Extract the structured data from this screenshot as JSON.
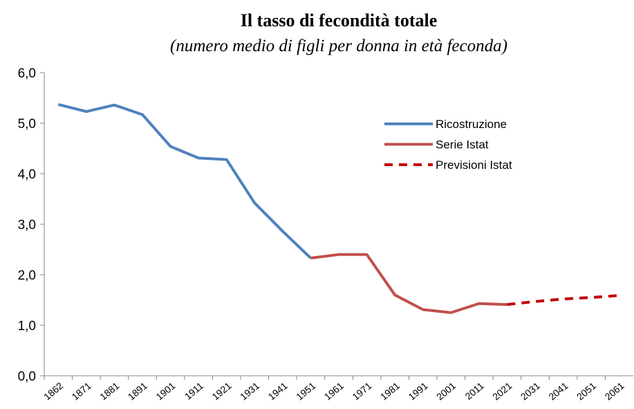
{
  "chart_data": {
    "type": "line",
    "title": "Il tasso di fecondità totale",
    "subtitle": "(numero medio di figli per donna in età feconda)",
    "categories": [
      "1862",
      "1871",
      "1881",
      "1891",
      "1901",
      "1911",
      "1921",
      "1931",
      "1941",
      "1951",
      "1961",
      "1971",
      "1981",
      "1991",
      "2001",
      "2011",
      "2021",
      "2031",
      "2041",
      "2051",
      "2061"
    ],
    "series": [
      {
        "name": "Ricostruzione",
        "color": "#4f81bd",
        "dashed": false,
        "values": [
          5.37,
          5.23,
          5.36,
          5.17,
          4.54,
          4.31,
          4.28,
          3.42,
          2.86,
          2.33,
          null,
          null,
          null,
          null,
          null,
          null,
          null,
          null,
          null,
          null,
          null
        ]
      },
      {
        "name": "Serie Istat",
        "color": "#c0504d",
        "dashed": false,
        "values": [
          null,
          null,
          null,
          null,
          null,
          null,
          null,
          null,
          null,
          2.33,
          2.4,
          2.4,
          1.6,
          1.31,
          1.25,
          1.43,
          1.41,
          null,
          null,
          null,
          null
        ]
      },
      {
        "name": "Previsioni Istat",
        "color": "#c00000",
        "dashed": true,
        "values": [
          null,
          null,
          null,
          null,
          null,
          null,
          null,
          null,
          null,
          null,
          null,
          null,
          null,
          null,
          null,
          null,
          1.41,
          1.47,
          1.52,
          1.55,
          1.59
        ]
      }
    ],
    "ylim": [
      0,
      6
    ],
    "yticks": [
      {
        "value": 0,
        "label": "0,0"
      },
      {
        "value": 1,
        "label": "1,0"
      },
      {
        "value": 2,
        "label": "2,0"
      },
      {
        "value": 3,
        "label": "3,0"
      },
      {
        "value": 4,
        "label": "4,0"
      },
      {
        "value": 5,
        "label": "5,0"
      },
      {
        "value": 6,
        "label": "6,0"
      }
    ],
    "grid": false
  }
}
